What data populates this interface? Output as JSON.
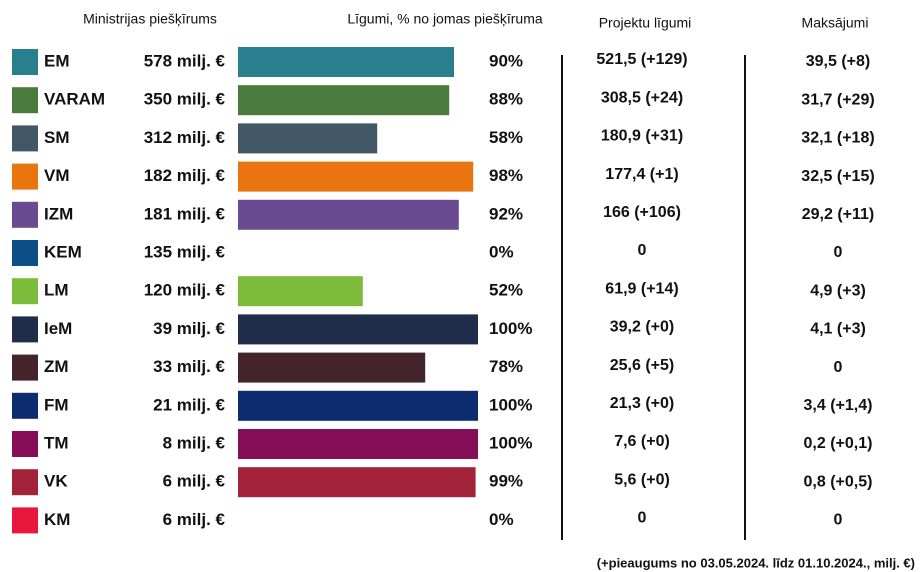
{
  "chart_data": {
    "type": "bar",
    "column_titles": [
      "Ministrijas piešķīrums",
      "Līgumi, % no jomas piešķīruma",
      "Projektu līgumi",
      "Maksājumi"
    ],
    "categories": [
      "EM",
      "VARAM",
      "SM",
      "VM",
      "IZM",
      "KEM",
      "LM",
      "IeM",
      "ZM",
      "FM",
      "TM",
      "VK",
      "KM"
    ],
    "allocations": [
      "578 milj. €",
      "350 milj. €",
      "312 milj. €",
      "182 milj. €",
      "181 milj. €",
      "135 milj. €",
      "120 milj. €",
      "39 milj. €",
      "33 milj. €",
      "21 milj. €",
      "8 milj. €",
      "6 milj. €",
      "6 milj. €"
    ],
    "values": [
      90,
      88,
      58,
      98,
      92,
      0,
      52,
      100,
      78,
      100,
      100,
      99,
      0
    ],
    "value_labels": [
      "90%",
      "88%",
      "58%",
      "98%",
      "92%",
      "0%",
      "52%",
      "100%",
      "78%",
      "100%",
      "100%",
      "99%",
      "0%"
    ],
    "colors": [
      "#2a7f8f",
      "#4a7a3c",
      "#435866",
      "#e97510",
      "#6a4a91",
      "#0c4f86",
      "#7dbc3a",
      "#1f2c4a",
      "#43242a",
      "#0d2c6f",
      "#860e59",
      "#a3243a",
      "#e8163c"
    ],
    "projects": [
      "521,5 (+129)",
      "308,5 (+24)",
      "180,9 (+31)",
      "177,4 (+1)",
      "166  (+106)",
      "0",
      "61,9 (+14)",
      "39,2 (+0)",
      "25,6 (+5)",
      "21,3  (+0)",
      "7,6 (+0)",
      "5,6 (+0)",
      "0"
    ],
    "payments": [
      "39,5 (+8)",
      "31,7 (+29)",
      "32,1 (+18)",
      "32,5 (+15)",
      "29,2 (+11)",
      "0",
      "4,9 (+3)",
      "4,1 (+3)",
      "0",
      "3,4 (+1,4)",
      "0,2 (+0,1)",
      "0,8 (+0,5)",
      "0"
    ],
    "xlim": [
      0,
      100
    ],
    "footnote": "(+pieaugums no 03.05.2024. līdz 01.10.2024., milj. €)"
  }
}
